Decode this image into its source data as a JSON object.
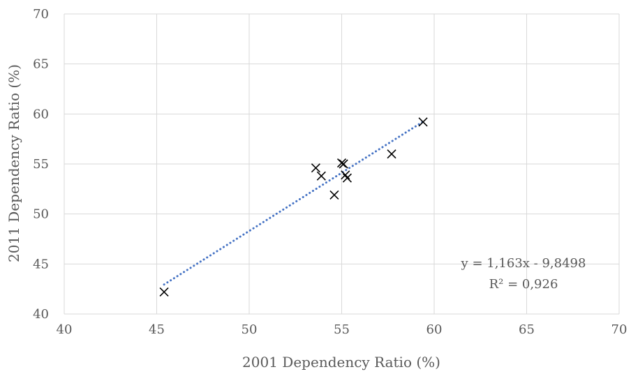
{
  "chart_data": {
    "type": "scatter",
    "title": "",
    "xlabel": "2001 Dependency Ratio (%)",
    "ylabel": "2011 Dependency Ratio (%)",
    "xlim": [
      40,
      70
    ],
    "ylim": [
      40,
      70
    ],
    "x_ticks": [
      40,
      45,
      50,
      55,
      60,
      65,
      70
    ],
    "y_ticks": [
      40,
      45,
      50,
      55,
      60,
      65,
      70
    ],
    "grid": true,
    "marker": "x",
    "marker_color": "#000000",
    "series": [
      {
        "points": [
          {
            "x": 45.4,
            "y": 42.2
          },
          {
            "x": 53.6,
            "y": 54.6
          },
          {
            "x": 53.9,
            "y": 53.8
          },
          {
            "x": 54.6,
            "y": 51.9
          },
          {
            "x": 55.0,
            "y": 55.1
          },
          {
            "x": 55.1,
            "y": 55.0
          },
          {
            "x": 55.2,
            "y": 53.9
          },
          {
            "x": 55.3,
            "y": 53.6
          },
          {
            "x": 57.7,
            "y": 56.0
          },
          {
            "x": 59.4,
            "y": 59.2
          }
        ]
      }
    ],
    "trendline": {
      "type": "linear",
      "style": "dotted",
      "color": "#4472c4",
      "slope": 1.163,
      "intercept": -9.8498,
      "x_range": [
        45.4,
        59.4
      ],
      "equation_label": "y = 1,163x - 9,8498",
      "r2_label": "R² = 0,926"
    }
  }
}
